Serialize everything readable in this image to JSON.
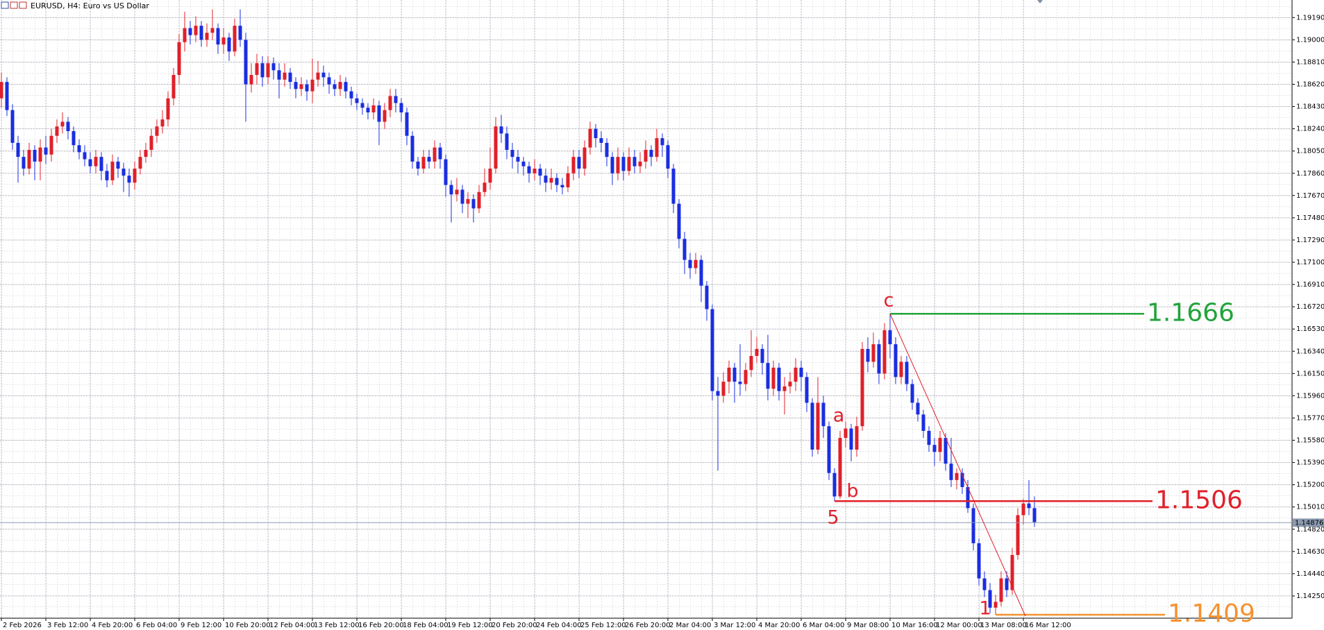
{
  "chart_data": {
    "type": "candlestick",
    "title": "EURUSD, H4: Euro vs US Dollar",
    "up_color": "#e0202a",
    "down_color": "#1a2ee0",
    "grid": true,
    "ylim": [
      1.1406,
      1.1934
    ],
    "yticks": [
      {
        "value": 1.1425,
        "label": "1.14250"
      },
      {
        "value": 1.1444,
        "label": "1.14440"
      },
      {
        "value": 1.1463,
        "label": "1.14630"
      },
      {
        "value": 1.1482,
        "label": "1.14820"
      },
      {
        "value": 1.1501,
        "label": "1.15010"
      },
      {
        "value": 1.152,
        "label": "1.15200"
      },
      {
        "value": 1.1539,
        "label": "1.15390"
      },
      {
        "value": 1.1558,
        "label": "1.15580"
      },
      {
        "value": 1.1577,
        "label": "1.15770"
      },
      {
        "value": 1.1596,
        "label": "1.15960"
      },
      {
        "value": 1.1615,
        "label": "1.16150"
      },
      {
        "value": 1.1634,
        "label": "1.16340"
      },
      {
        "value": 1.1653,
        "label": "1.16530"
      },
      {
        "value": 1.1672,
        "label": "1.16720"
      },
      {
        "value": 1.1691,
        "label": "1.16910"
      },
      {
        "value": 1.171,
        "label": "1.17100"
      },
      {
        "value": 1.1729,
        "label": "1.17290"
      },
      {
        "value": 1.1748,
        "label": "1.17480"
      },
      {
        "value": 1.1767,
        "label": "1.17670"
      },
      {
        "value": 1.1786,
        "label": "1.17860"
      },
      {
        "value": 1.1805,
        "label": "1.18050"
      },
      {
        "value": 1.1824,
        "label": "1.18240"
      },
      {
        "value": 1.1843,
        "label": "1.18430"
      },
      {
        "value": 1.1862,
        "label": "1.18620"
      },
      {
        "value": 1.1881,
        "label": "1.18810"
      },
      {
        "value": 1.19,
        "label": "1.19000"
      },
      {
        "value": 1.1919,
        "label": "1.19190"
      }
    ],
    "current_price": 1.14876,
    "categories": [
      "2 Feb 2026",
      null,
      null,
      null,
      null,
      null,
      null,
      null,
      "3 Feb 12:00",
      null,
      null,
      null,
      null,
      null,
      null,
      null,
      "4 Feb 20:00",
      null,
      null,
      null,
      null,
      null,
      null,
      null,
      "6 Feb 04:00",
      null,
      null,
      null,
      null,
      null,
      null,
      null,
      "9 Feb 12:00",
      null,
      null,
      null,
      null,
      null,
      null,
      null,
      "10 Feb 20:00",
      null,
      null,
      null,
      null,
      null,
      null,
      null,
      "12 Feb 04:00",
      null,
      null,
      null,
      null,
      null,
      null,
      null,
      "13 Feb 12:00",
      null,
      null,
      null,
      null,
      null,
      null,
      null,
      "16 Feb 20:00",
      null,
      null,
      null,
      null,
      null,
      null,
      null,
      "18 Feb 04:00",
      null,
      null,
      null,
      null,
      null,
      null,
      null,
      "19 Feb 12:00",
      null,
      null,
      null,
      null,
      null,
      null,
      null,
      "20 Feb 20:00",
      null,
      null,
      null,
      null,
      null,
      null,
      null,
      "24 Feb 04:00",
      null,
      null,
      null,
      null,
      null,
      null,
      null,
      "25 Feb 12:00",
      null,
      null,
      null,
      null,
      null,
      null,
      null,
      "26 Feb 20:00",
      null,
      null,
      null,
      null,
      null,
      null,
      null,
      "2 Mar 04:00",
      null,
      null,
      null,
      null,
      null,
      null,
      null,
      "3 Mar 12:00",
      null,
      null,
      null,
      null,
      null,
      null,
      null,
      "4 Mar 20:00",
      null,
      null,
      null,
      null,
      null,
      null,
      null,
      "6 Mar 04:00",
      null,
      null,
      null,
      null,
      null,
      null,
      null,
      "9 Mar 08:00",
      null,
      null,
      null,
      null,
      null,
      null,
      null,
      "10 Mar 16:00",
      null,
      null,
      null,
      null,
      null,
      null,
      null,
      "12 Mar 00:00",
      null,
      null,
      null,
      null,
      null,
      null,
      null,
      "13 Mar 08:00",
      null,
      null,
      null,
      null,
      null,
      null,
      null,
      "16 Mar 12:00",
      null,
      null
    ],
    "ohlc": [
      [
        1.185,
        1.1872,
        1.1842,
        1.1864
      ],
      [
        1.1864,
        1.1868,
        1.1835,
        1.184
      ],
      [
        1.184,
        1.1845,
        1.1806,
        1.1812
      ],
      [
        1.1812,
        1.1818,
        1.1778,
        1.18
      ],
      [
        1.18,
        1.1806,
        1.1784,
        1.179
      ],
      [
        1.179,
        1.1812,
        1.1785,
        1.1806
      ],
      [
        1.1806,
        1.181,
        1.178,
        1.1796
      ],
      [
        1.1796,
        1.1815,
        1.178,
        1.1808
      ],
      [
        1.1808,
        1.1818,
        1.1794,
        1.1802
      ],
      [
        1.1802,
        1.1824,
        1.1796,
        1.1818
      ],
      [
        1.1818,
        1.1832,
        1.1812,
        1.1826
      ],
      [
        1.1826,
        1.1838,
        1.182,
        1.183
      ],
      [
        1.183,
        1.1834,
        1.1815,
        1.1822
      ],
      [
        1.1822,
        1.1826,
        1.1804,
        1.181
      ],
      [
        1.181,
        1.1815,
        1.1798,
        1.1804
      ],
      [
        1.1804,
        1.181,
        1.1792,
        1.1798
      ],
      [
        1.1798,
        1.1804,
        1.1786,
        1.1792
      ],
      [
        1.1792,
        1.1806,
        1.1786,
        1.18
      ],
      [
        1.18,
        1.1804,
        1.178,
        1.1788
      ],
      [
        1.1788,
        1.1794,
        1.1774,
        1.178
      ],
      [
        1.178,
        1.1802,
        1.1776,
        1.1796
      ],
      [
        1.1796,
        1.18,
        1.1782,
        1.179
      ],
      [
        1.179,
        1.1795,
        1.177,
        1.1784
      ],
      [
        1.1784,
        1.179,
        1.1766,
        1.1778
      ],
      [
        1.1778,
        1.1796,
        1.1772,
        1.179
      ],
      [
        1.179,
        1.1806,
        1.1785,
        1.18
      ],
      [
        1.18,
        1.1812,
        1.1795,
        1.1806
      ],
      [
        1.1806,
        1.1824,
        1.18,
        1.1818
      ],
      [
        1.1818,
        1.1832,
        1.1812,
        1.1826
      ],
      [
        1.1826,
        1.184,
        1.182,
        1.1832
      ],
      [
        1.1832,
        1.1856,
        1.1826,
        1.185
      ],
      [
        1.185,
        1.1876,
        1.1844,
        1.187
      ],
      [
        1.187,
        1.1905,
        1.1862,
        1.1898
      ],
      [
        1.1898,
        1.1924,
        1.189,
        1.191
      ],
      [
        1.191,
        1.1916,
        1.1896,
        1.1904
      ],
      [
        1.1904,
        1.192,
        1.1898,
        1.1912
      ],
      [
        1.1912,
        1.1916,
        1.1894,
        1.19
      ],
      [
        1.19,
        1.1914,
        1.1894,
        1.1906
      ],
      [
        1.1906,
        1.1926,
        1.19,
        1.191
      ],
      [
        1.191,
        1.1914,
        1.1888,
        1.1896
      ],
      [
        1.1896,
        1.191,
        1.1888,
        1.1902
      ],
      [
        1.1902,
        1.1906,
        1.1882,
        1.189
      ],
      [
        1.189,
        1.1918,
        1.1886,
        1.1912
      ],
      [
        1.1912,
        1.1926,
        1.1894,
        1.19
      ],
      [
        1.19,
        1.1906,
        1.183,
        1.1862
      ],
      [
        1.1862,
        1.188,
        1.1855,
        1.187
      ],
      [
        1.187,
        1.1888,
        1.1862,
        1.188
      ],
      [
        1.188,
        1.1886,
        1.186,
        1.1868
      ],
      [
        1.1868,
        1.1886,
        1.1862,
        1.188
      ],
      [
        1.188,
        1.1885,
        1.1866,
        1.1874
      ],
      [
        1.1874,
        1.188,
        1.185,
        1.1866
      ],
      [
        1.1866,
        1.188,
        1.186,
        1.1872
      ],
      [
        1.1872,
        1.1876,
        1.1858,
        1.1864
      ],
      [
        1.1864,
        1.1868,
        1.185,
        1.1858
      ],
      [
        1.1858,
        1.1868,
        1.1852,
        1.1862
      ],
      [
        1.1862,
        1.1866,
        1.1848,
        1.1856
      ],
      [
        1.1856,
        1.1884,
        1.1846,
        1.1866
      ],
      [
        1.1866,
        1.1882,
        1.186,
        1.1872
      ],
      [
        1.1872,
        1.1878,
        1.186,
        1.1868
      ],
      [
        1.1868,
        1.1872,
        1.1854,
        1.1862
      ],
      [
        1.1862,
        1.1866,
        1.1852,
        1.1858
      ],
      [
        1.1858,
        1.187,
        1.1852,
        1.1864
      ],
      [
        1.1864,
        1.1868,
        1.185,
        1.1856
      ],
      [
        1.1856,
        1.186,
        1.1844,
        1.185
      ],
      [
        1.185,
        1.1854,
        1.184,
        1.1846
      ],
      [
        1.1846,
        1.185,
        1.1836,
        1.1842
      ],
      [
        1.1842,
        1.1846,
        1.1832,
        1.1838
      ],
      [
        1.1838,
        1.185,
        1.1832,
        1.1844
      ],
      [
        1.1844,
        1.1848,
        1.181,
        1.183
      ],
      [
        1.183,
        1.1846,
        1.1824,
        1.184
      ],
      [
        1.184,
        1.1858,
        1.1834,
        1.1852
      ],
      [
        1.1852,
        1.1858,
        1.1838,
        1.1846
      ],
      [
        1.1846,
        1.185,
        1.183,
        1.1838
      ],
      [
        1.1838,
        1.1842,
        1.181,
        1.1818
      ],
      [
        1.1818,
        1.1822,
        1.179,
        1.1796
      ],
      [
        1.1796,
        1.18,
        1.1784,
        1.179
      ],
      [
        1.179,
        1.1806,
        1.1786,
        1.18
      ],
      [
        1.18,
        1.1806,
        1.179,
        1.1796
      ],
      [
        1.1796,
        1.1814,
        1.179,
        1.1808
      ],
      [
        1.1808,
        1.1812,
        1.179,
        1.1798
      ],
      [
        1.1798,
        1.1802,
        1.1766,
        1.1776
      ],
      [
        1.1776,
        1.178,
        1.1744,
        1.1768
      ],
      [
        1.1768,
        1.1782,
        1.1762,
        1.1772
      ],
      [
        1.1772,
        1.1776,
        1.1752,
        1.176
      ],
      [
        1.176,
        1.177,
        1.1748,
        1.1764
      ],
      [
        1.1764,
        1.1768,
        1.1744,
        1.1756
      ],
      [
        1.1756,
        1.1776,
        1.1752,
        1.177
      ],
      [
        1.177,
        1.179,
        1.1766,
        1.1778
      ],
      [
        1.1778,
        1.1808,
        1.1772,
        1.179
      ],
      [
        1.179,
        1.1834,
        1.1786,
        1.1826
      ],
      [
        1.1826,
        1.1836,
        1.1812,
        1.182
      ],
      [
        1.182,
        1.1826,
        1.1798,
        1.1806
      ],
      [
        1.1806,
        1.1812,
        1.179,
        1.18
      ],
      [
        1.18,
        1.1806,
        1.1786,
        1.1796
      ],
      [
        1.1796,
        1.18,
        1.1784,
        1.1792
      ],
      [
        1.1792,
        1.1796,
        1.1778,
        1.1786
      ],
      [
        1.1786,
        1.1798,
        1.178,
        1.179
      ],
      [
        1.179,
        1.1794,
        1.1776,
        1.1784
      ],
      [
        1.1784,
        1.179,
        1.177,
        1.1778
      ],
      [
        1.1778,
        1.179,
        1.1772,
        1.1782
      ],
      [
        1.1782,
        1.1786,
        1.177,
        1.1776
      ],
      [
        1.1776,
        1.1782,
        1.1768,
        1.1774
      ],
      [
        1.1774,
        1.1792,
        1.177,
        1.1786
      ],
      [
        1.1786,
        1.1806,
        1.178,
        1.18
      ],
      [
        1.18,
        1.1806,
        1.1782,
        1.179
      ],
      [
        1.179,
        1.1814,
        1.1784,
        1.1808
      ],
      [
        1.1808,
        1.183,
        1.1802,
        1.1824
      ],
      [
        1.1824,
        1.1828,
        1.1808,
        1.1816
      ],
      [
        1.1816,
        1.1822,
        1.1804,
        1.1812
      ],
      [
        1.1812,
        1.1816,
        1.1792,
        1.18
      ],
      [
        1.18,
        1.1804,
        1.1776,
        1.1786
      ],
      [
        1.1786,
        1.1808,
        1.178,
        1.18
      ],
      [
        1.18,
        1.1804,
        1.178,
        1.1788
      ],
      [
        1.1788,
        1.1808,
        1.1784,
        1.18
      ],
      [
        1.18,
        1.1806,
        1.1786,
        1.1792
      ],
      [
        1.1792,
        1.1804,
        1.1786,
        1.1796
      ],
      [
        1.1796,
        1.1814,
        1.179,
        1.1806
      ],
      [
        1.1806,
        1.181,
        1.1792,
        1.18
      ],
      [
        1.18,
        1.1824,
        1.1796,
        1.1816
      ],
      [
        1.1816,
        1.182,
        1.18,
        1.181
      ],
      [
        1.181,
        1.1814,
        1.1782,
        1.179
      ],
      [
        1.179,
        1.1794,
        1.1752,
        1.176
      ],
      [
        1.176,
        1.1764,
        1.1722,
        1.173
      ],
      [
        1.173,
        1.1736,
        1.17,
        1.1712
      ],
      [
        1.1712,
        1.1718,
        1.1696,
        1.1705
      ],
      [
        1.1705,
        1.1718,
        1.17,
        1.1712
      ],
      [
        1.1712,
        1.1716,
        1.1676,
        1.169
      ],
      [
        1.169,
        1.1694,
        1.166,
        1.167
      ],
      [
        1.167,
        1.1674,
        1.1592,
        1.16
      ],
      [
        1.16,
        1.1612,
        1.1532,
        1.1596
      ],
      [
        1.1596,
        1.1616,
        1.159,
        1.1608
      ],
      [
        1.1608,
        1.1626,
        1.1598,
        1.162
      ],
      [
        1.162,
        1.1624,
        1.159,
        1.1608
      ],
      [
        1.1608,
        1.164,
        1.1596,
        1.1606
      ],
      [
        1.1606,
        1.1624,
        1.16,
        1.1618
      ],
      [
        1.1618,
        1.1652,
        1.1612,
        1.163
      ],
      [
        1.163,
        1.1646,
        1.1624,
        1.1636
      ],
      [
        1.1636,
        1.164,
        1.1614,
        1.1624
      ],
      [
        1.1624,
        1.1648,
        1.1592,
        1.1602
      ],
      [
        1.1602,
        1.1626,
        1.1596,
        1.162
      ],
      [
        1.162,
        1.1624,
        1.1592,
        1.16
      ],
      [
        1.16,
        1.1612,
        1.158,
        1.1604
      ],
      [
        1.1604,
        1.1616,
        1.1598,
        1.1608
      ],
      [
        1.1608,
        1.1628,
        1.16,
        1.162
      ],
      [
        1.162,
        1.1626,
        1.16,
        1.1612
      ],
      [
        1.1612,
        1.1616,
        1.1582,
        1.159
      ],
      [
        1.159,
        1.1594,
        1.1544,
        1.155
      ],
      [
        1.155,
        1.1612,
        1.1546,
        1.159
      ],
      [
        1.159,
        1.1596,
        1.156,
        1.157
      ],
      [
        1.157,
        1.1574,
        1.1524,
        1.153
      ],
      [
        1.153,
        1.1534,
        1.1506,
        1.151
      ],
      [
        1.151,
        1.1566,
        1.1508,
        1.156
      ],
      [
        1.156,
        1.1574,
        1.1552,
        1.1568
      ],
      [
        1.1568,
        1.1572,
        1.154,
        1.155
      ],
      [
        1.155,
        1.1578,
        1.1544,
        1.157
      ],
      [
        1.157,
        1.1642,
        1.1566,
        1.1636
      ],
      [
        1.1636,
        1.1646,
        1.1616,
        1.1625
      ],
      [
        1.1625,
        1.165,
        1.162,
        1.164
      ],
      [
        1.164,
        1.1644,
        1.1606,
        1.1615
      ],
      [
        1.1615,
        1.1658,
        1.161,
        1.1652
      ],
      [
        1.1652,
        1.1666,
        1.1628,
        1.164
      ],
      [
        1.164,
        1.1646,
        1.1606,
        1.1612
      ],
      [
        1.1612,
        1.163,
        1.1606,
        1.1625
      ],
      [
        1.1625,
        1.163,
        1.16,
        1.1606
      ],
      [
        1.1606,
        1.161,
        1.1584,
        1.159
      ],
      [
        1.159,
        1.1594,
        1.1574,
        1.158
      ],
      [
        1.158,
        1.1584,
        1.156,
        1.1566
      ],
      [
        1.1566,
        1.157,
        1.1548,
        1.1554
      ],
      [
        1.1554,
        1.156,
        1.1536,
        1.1548
      ],
      [
        1.1548,
        1.1566,
        1.154,
        1.156
      ],
      [
        1.156,
        1.1564,
        1.1532,
        1.1538
      ],
      [
        1.1538,
        1.156,
        1.1518,
        1.1524
      ],
      [
        1.1524,
        1.1534,
        1.1516,
        1.153
      ],
      [
        1.153,
        1.1534,
        1.1512,
        1.1518
      ],
      [
        1.1518,
        1.1524,
        1.1496,
        1.15
      ],
      [
        1.15,
        1.1504,
        1.1464,
        1.147
      ],
      [
        1.147,
        1.1474,
        1.1434,
        1.144
      ],
      [
        1.144,
        1.1446,
        1.1424,
        1.143
      ],
      [
        1.143,
        1.1436,
        1.141,
        1.1415
      ],
      [
        1.1415,
        1.1426,
        1.1409,
        1.142
      ],
      [
        1.142,
        1.1446,
        1.1416,
        1.144
      ],
      [
        1.144,
        1.1446,
        1.1424,
        1.143
      ],
      [
        1.143,
        1.1466,
        1.1426,
        1.146
      ],
      [
        1.146,
        1.15,
        1.1456,
        1.1494
      ],
      [
        1.1494,
        1.1508,
        1.1486,
        1.1504
      ],
      [
        1.1504,
        1.1524,
        1.1494,
        1.15
      ],
      [
        1.15,
        1.151,
        1.1484,
        1.1488
      ]
    ],
    "levels": [
      {
        "value": 1.1666,
        "color": "#22a33a"
      },
      {
        "value": 1.1506,
        "color": "#e0202a"
      },
      {
        "value": 1.1409,
        "color": "#f5922f"
      }
    ],
    "wave_labels": [
      "5",
      "a",
      "b",
      "c",
      "1"
    ]
  }
}
